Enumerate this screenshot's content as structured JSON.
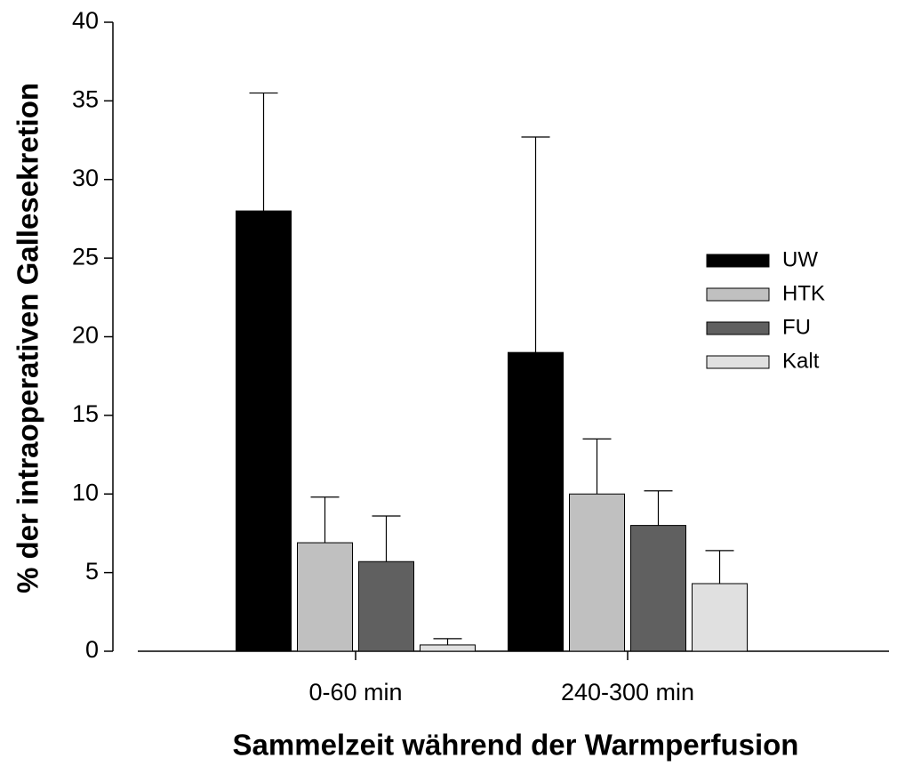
{
  "chart_data": {
    "type": "bar",
    "x_label": "Sammelzeit während der Warmperfusion",
    "y_label": "% der intraoperativen Gallesekretion",
    "categories": [
      "0-60 min",
      "240-300 min"
    ],
    "series": [
      {
        "name": "UW",
        "color": "#000000",
        "values": [
          28,
          19
        ],
        "errors": [
          7.5,
          13.7
        ]
      },
      {
        "name": "HTK",
        "color": "#c0c0c0",
        "values": [
          6.9,
          10
        ],
        "errors": [
          2.9,
          3.5
        ]
      },
      {
        "name": "FU",
        "color": "#606060",
        "values": [
          5.7,
          8
        ],
        "errors": [
          2.9,
          2.2
        ]
      },
      {
        "name": "Kalt",
        "color": "#e0e0e0",
        "values": [
          0.4,
          4.3
        ],
        "errors": [
          0.4,
          2.1
        ]
      }
    ],
    "ylim": [
      0,
      40
    ],
    "yticks": [
      0,
      5,
      10,
      15,
      20,
      25,
      30,
      35,
      40
    ],
    "legend": "right"
  }
}
